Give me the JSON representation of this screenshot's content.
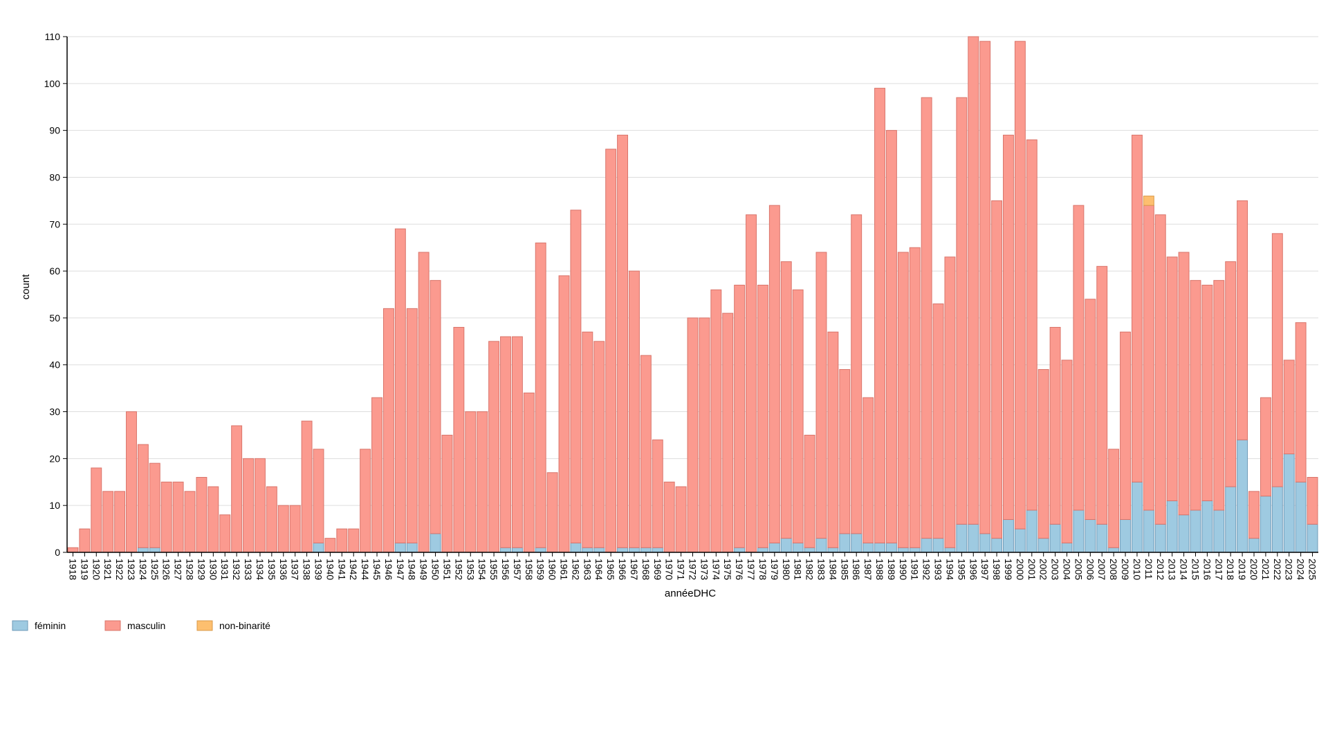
{
  "chart_data": {
    "type": "bar",
    "stacked": true,
    "xlabel": "annéeDHC",
    "ylabel": "count",
    "ylim": [
      0,
      110
    ],
    "yticks": [
      0,
      10,
      20,
      30,
      40,
      50,
      60,
      70,
      80,
      90,
      100,
      110
    ],
    "grid": true,
    "legend_position": "bottom-left",
    "categories": [
      "1918",
      "1919",
      "1920",
      "1921",
      "1922",
      "1923",
      "1924",
      "1925",
      "1926",
      "1927",
      "1928",
      "1929",
      "1930",
      "1931",
      "1932",
      "1933",
      "1934",
      "1935",
      "1936",
      "1937",
      "1938",
      "1939",
      "1940",
      "1941",
      "1942",
      "1944",
      "1945",
      "1946",
      "1947",
      "1948",
      "1949",
      "1950",
      "1951",
      "1952",
      "1953",
      "1954",
      "1955",
      "1956",
      "1957",
      "1958",
      "1959",
      "1960",
      "1961",
      "1962",
      "1963",
      "1964",
      "1965",
      "1966",
      "1967",
      "1968",
      "1969",
      "1970",
      "1971",
      "1972",
      "1973",
      "1974",
      "1975",
      "1976",
      "1977",
      "1978",
      "1979",
      "1980",
      "1981",
      "1982",
      "1983",
      "1984",
      "1985",
      "1986",
      "1987",
      "1988",
      "1989",
      "1990",
      "1991",
      "1992",
      "1993",
      "1994",
      "1995",
      "1996",
      "1997",
      "1998",
      "1999",
      "2000",
      "2001",
      "2002",
      "2003",
      "2004",
      "2005",
      "2006",
      "2007",
      "2008",
      "2009",
      "2010",
      "2011",
      "2012",
      "2013",
      "2014",
      "2015",
      "2016",
      "2017",
      "2018",
      "2019",
      "2020",
      "2021",
      "2022",
      "2023",
      "2024",
      "2025"
    ],
    "series": [
      {
        "name": "féminin",
        "color": "#9ecae1",
        "stroke": "#6e9ab8",
        "values": [
          0,
          0,
          0,
          0,
          0,
          0,
          1,
          1,
          0,
          0,
          0,
          0,
          0,
          0,
          0,
          0,
          0,
          0,
          0,
          0,
          0,
          2,
          0,
          0,
          0,
          0,
          0,
          0,
          2,
          2,
          0,
          4,
          0,
          0,
          0,
          0,
          0,
          1,
          1,
          0,
          1,
          0,
          0,
          2,
          1,
          1,
          0,
          1,
          1,
          1,
          1,
          0,
          0,
          0,
          0,
          0,
          0,
          1,
          0,
          1,
          2,
          3,
          2,
          1,
          3,
          1,
          4,
          4,
          2,
          2,
          2,
          1,
          1,
          3,
          3,
          1,
          6,
          6,
          4,
          3,
          7,
          5,
          9,
          3,
          6,
          2,
          9,
          7,
          6,
          1,
          7,
          15,
          9,
          6,
          11,
          8,
          9,
          11,
          9,
          14,
          24,
          3,
          12,
          14,
          21,
          15,
          6
        ]
      },
      {
        "name": "masculin",
        "color": "#fb9a8f",
        "stroke": "#d9746a",
        "values": [
          1,
          5,
          18,
          13,
          13,
          30,
          22,
          18,
          15,
          15,
          13,
          16,
          14,
          8,
          27,
          20,
          20,
          14,
          10,
          10,
          28,
          20,
          3,
          5,
          5,
          22,
          33,
          52,
          67,
          50,
          64,
          54,
          25,
          48,
          30,
          30,
          45,
          45,
          45,
          34,
          65,
          17,
          59,
          71,
          46,
          44,
          86,
          88,
          59,
          41,
          23,
          15,
          14,
          50,
          50,
          56,
          51,
          56,
          72,
          56,
          72,
          59,
          54,
          24,
          61,
          46,
          35,
          68,
          31,
          97,
          88,
          63,
          64,
          94,
          50,
          62,
          91,
          104,
          105,
          72,
          82,
          104,
          79,
          36,
          42,
          39,
          65,
          47,
          55,
          21,
          40,
          74,
          65,
          66,
          52,
          56,
          49,
          46,
          49,
          48,
          51,
          10,
          21,
          54,
          20,
          34,
          10
        ]
      },
      {
        "name": "non-binarité",
        "color": "#fdbf6f",
        "stroke": "#d99a4a",
        "values": [
          0,
          0,
          0,
          0,
          0,
          0,
          0,
          0,
          0,
          0,
          0,
          0,
          0,
          0,
          0,
          0,
          0,
          0,
          0,
          0,
          0,
          0,
          0,
          0,
          0,
          0,
          0,
          0,
          0,
          0,
          0,
          0,
          0,
          0,
          0,
          0,
          0,
          0,
          0,
          0,
          0,
          0,
          0,
          0,
          0,
          0,
          0,
          0,
          0,
          0,
          0,
          0,
          0,
          0,
          0,
          0,
          0,
          0,
          0,
          0,
          0,
          0,
          0,
          0,
          0,
          0,
          0,
          0,
          0,
          0,
          0,
          0,
          0,
          0,
          0,
          0,
          0,
          0,
          0,
          0,
          0,
          0,
          0,
          0,
          0,
          0,
          0,
          0,
          0,
          0,
          0,
          0,
          2,
          0,
          0,
          0,
          0,
          0,
          0,
          0,
          0,
          0,
          0,
          0,
          0,
          0,
          0
        ]
      }
    ]
  }
}
